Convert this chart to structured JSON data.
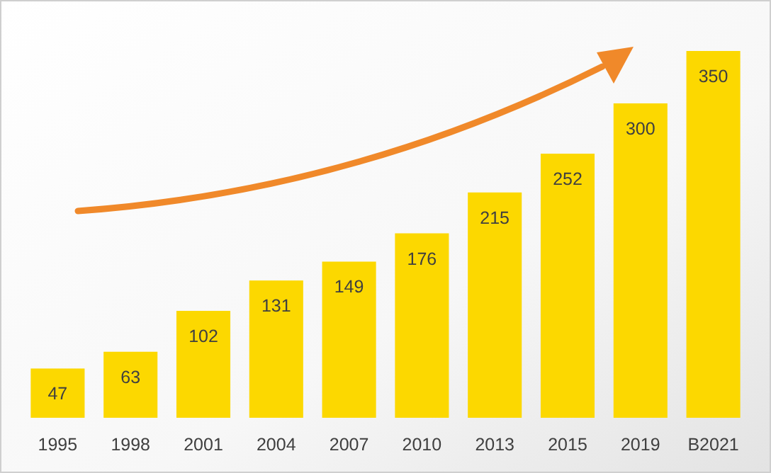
{
  "chart_data": {
    "type": "bar",
    "categories": [
      "1995",
      "1998",
      "2001",
      "2004",
      "2007",
      "2010",
      "2013",
      "2015",
      "2019",
      "B2021"
    ],
    "values": [
      47,
      63,
      102,
      131,
      149,
      176,
      215,
      252,
      300,
      350
    ],
    "color": "#fcd800",
    "data_labels": true
  }
}
